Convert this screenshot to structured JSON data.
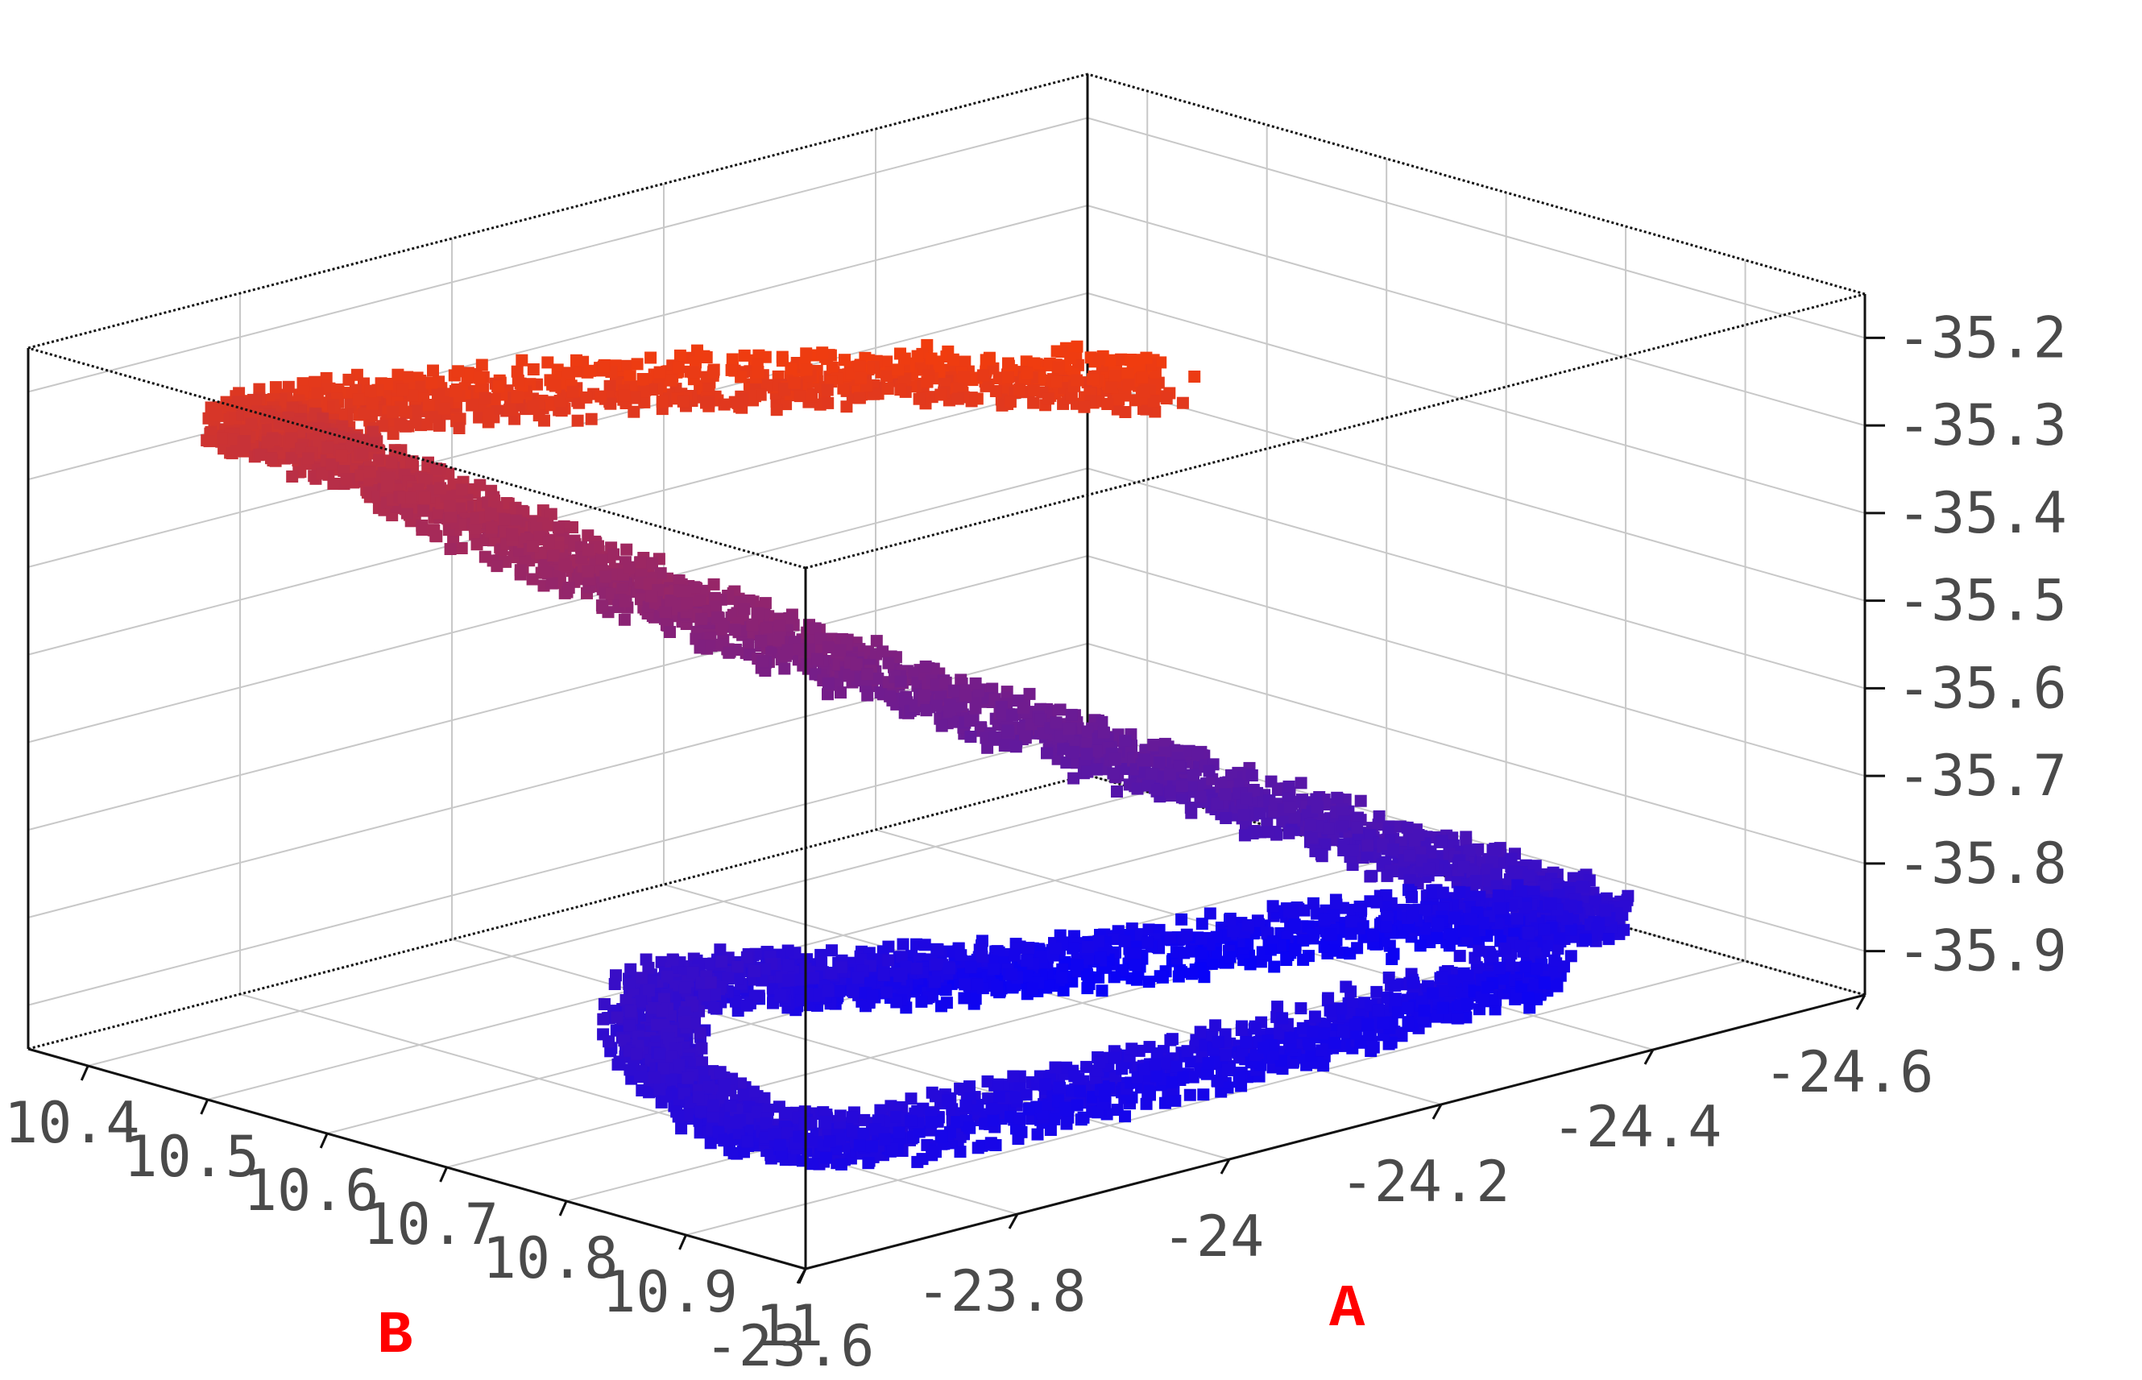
{
  "chart_data": {
    "type": "scatter",
    "subtype": "3d-scatter",
    "x_axis": {
      "label": "A",
      "ticks": [
        "-23.6",
        "-23.8",
        "-24",
        "-24.2",
        "-24.4",
        "-24.6"
      ],
      "range": [
        -24.6,
        -23.6
      ]
    },
    "y_axis": {
      "label": "B",
      "ticks": [
        "10.4",
        "10.5",
        "10.6",
        "10.7",
        "10.8",
        "10.9",
        "11"
      ],
      "range": [
        10.35,
        11.0
      ]
    },
    "z_axis": {
      "label": "",
      "ticks": [
        "-35.2",
        "-35.3",
        "-35.4",
        "-35.5",
        "-35.6",
        "-35.7",
        "-35.8",
        "-35.9"
      ],
      "range": [
        -35.95,
        -35.15
      ]
    },
    "color_scale": {
      "low": "#0000ff",
      "high": "#ff4000",
      "mapped_to": "z"
    },
    "grid": true,
    "trajectory_control_points": [
      {
        "a": -24.2,
        "b": 10.76,
        "z": -35.22
      },
      {
        "a": -24.05,
        "b": 10.62,
        "z": -35.22
      },
      {
        "a": -23.85,
        "b": 10.47,
        "z": -35.24
      },
      {
        "a": -23.78,
        "b": 10.38,
        "z": -35.28
      },
      {
        "a": -23.86,
        "b": 10.38,
        "z": -35.34
      },
      {
        "a": -23.93,
        "b": 10.44,
        "z": -35.42
      },
      {
        "a": -24.01,
        "b": 10.53,
        "z": -35.5
      },
      {
        "a": -24.1,
        "b": 10.64,
        "z": -35.58
      },
      {
        "a": -24.2,
        "b": 10.76,
        "z": -35.66
      },
      {
        "a": -24.3,
        "b": 10.88,
        "z": -35.74
      },
      {
        "a": -24.4,
        "b": 10.94,
        "z": -35.82
      },
      {
        "a": -24.4,
        "b": 10.8,
        "z": -35.88
      },
      {
        "a": -24.2,
        "b": 10.7,
        "z": -35.9
      },
      {
        "a": -24.0,
        "b": 10.7,
        "z": -35.86
      },
      {
        "a": -23.8,
        "b": 10.72,
        "z": -35.8
      },
      {
        "a": -23.66,
        "b": 10.83,
        "z": -35.8
      },
      {
        "a": -23.66,
        "b": 10.95,
        "z": -35.84
      },
      {
        "a": -23.9,
        "b": 10.96,
        "z": -35.86
      },
      {
        "a": -24.15,
        "b": 10.96,
        "z": -35.86
      },
      {
        "a": -24.38,
        "b": 10.92,
        "z": -35.88
      }
    ]
  }
}
